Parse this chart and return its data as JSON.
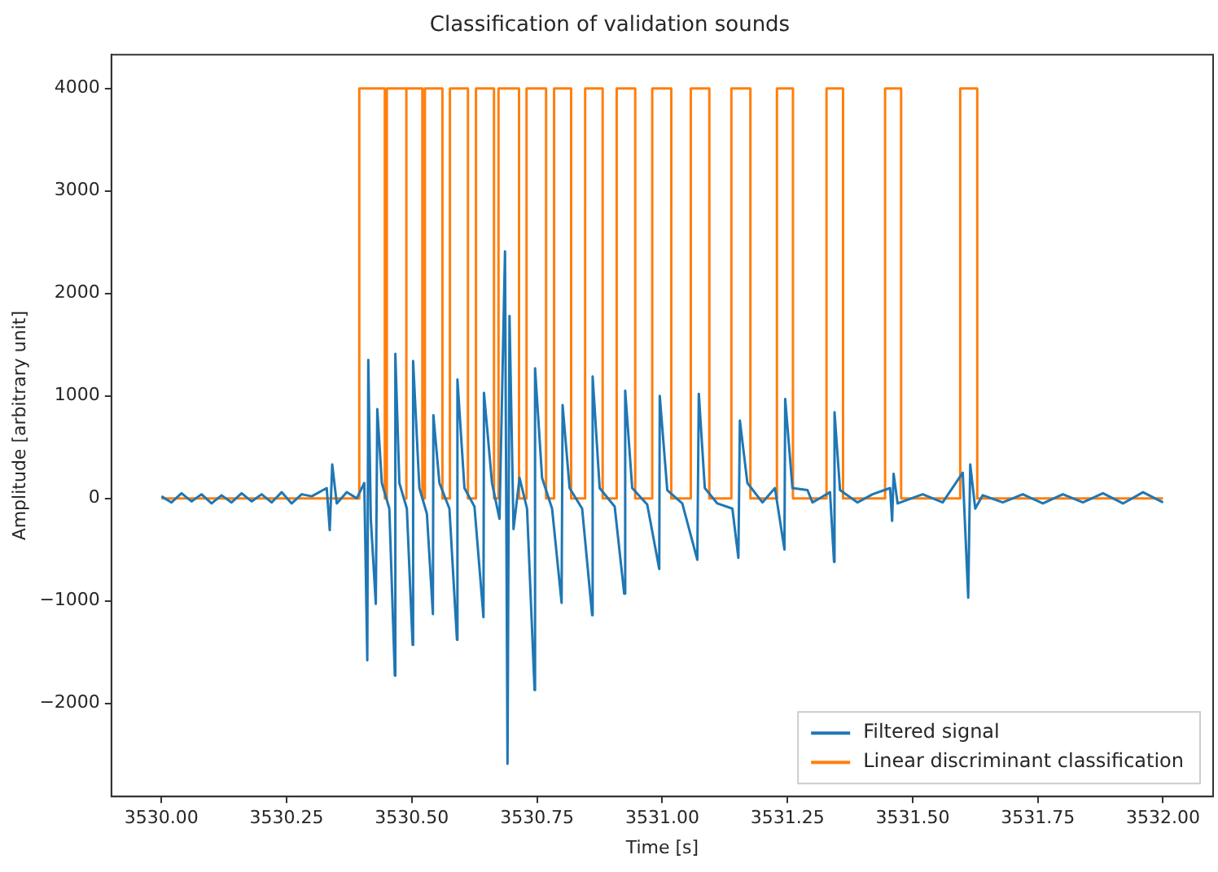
{
  "chart_data": {
    "type": "line",
    "title": "Classification of validation sounds",
    "xlabel": "Time [s]",
    "ylabel": "Amplitude [arbitrary unit]",
    "xlim": [
      3529.9,
      3532.1
    ],
    "ylim": [
      -2910,
      4330
    ],
    "xticks": [
      {
        "value": 3530,
        "label": "3530.00"
      },
      {
        "value": 3530.25,
        "label": "3530.25"
      },
      {
        "value": 3530.5,
        "label": "3530.50"
      },
      {
        "value": 3530.75,
        "label": "3530.75"
      },
      {
        "value": 3531,
        "label": "3531.00"
      },
      {
        "value": 3531.25,
        "label": "3531.25"
      },
      {
        "value": 3531.5,
        "label": "3531.50"
      },
      {
        "value": 3531.75,
        "label": "3531.75"
      },
      {
        "value": 3532,
        "label": "3532.00"
      }
    ],
    "yticks": [
      {
        "value": -2000,
        "label": "−2000"
      },
      {
        "value": -1000,
        "label": "−1000"
      },
      0,
      1000,
      2000,
      3000,
      4000
    ],
    "grid": false,
    "legend": "bottom right",
    "marker": "none",
    "line_style": "solid",
    "series": [
      {
        "name": "Filtered signal",
        "color": "#1f77b4",
        "type": "line",
        "x": [
          3530,
          3530.02,
          3530.04,
          3530.06,
          3530.08,
          3530.1,
          3530.12,
          3530.14,
          3530.16,
          3530.18,
          3530.2,
          3530.22,
          3530.24,
          3530.26,
          3530.28,
          3530.3,
          3530.33,
          3530.336,
          3530.341,
          3530.35,
          3530.37,
          3530.39,
          3530.405,
          3530.411,
          3530.413,
          3530.418,
          3530.428,
          3530.431,
          3530.44,
          3530.455,
          3530.466,
          3530.467,
          3530.475,
          3530.49,
          3530.5015,
          3530.5025,
          3530.515,
          3530.53,
          3530.542,
          3530.543,
          3530.555,
          3530.575,
          3530.59,
          3530.591,
          3530.605,
          3530.625,
          3530.643,
          3530.644,
          3530.66,
          3530.675,
          3530.686,
          3530.691,
          3530.695,
          3530.703,
          3530.715,
          3530.73,
          3530.745,
          3530.746,
          3530.76,
          3530.78,
          3530.799,
          3530.801,
          3530.815,
          3530.84,
          3530.86,
          3530.861,
          3530.875,
          3530.905,
          3530.924,
          3530.926,
          3530.94,
          3530.97,
          3530.994,
          3530.995,
          3531.01,
          3531.04,
          3531.07,
          3531.073,
          3531.085,
          3531.11,
          3531.14,
          3531.152,
          3531.155,
          3531.17,
          3531.2,
          3531.225,
          3531.244,
          3531.2455,
          3531.26,
          3531.29,
          3531.3,
          3531.335,
          3531.343,
          3531.344,
          3531.355,
          3531.39,
          3531.42,
          3531.455,
          3531.459,
          3531.462,
          3531.47,
          3531.52,
          3531.56,
          3531.6,
          3531.611,
          3531.615,
          3531.625,
          3531.64,
          3531.68,
          3531.72,
          3531.76,
          3531.8,
          3531.84,
          3531.88,
          3531.92,
          3531.96,
          3532
        ],
        "values": [
          20,
          -40,
          50,
          -30,
          40,
          -50,
          30,
          -40,
          50,
          -30,
          40,
          -40,
          60,
          -50,
          40,
          20,
          100,
          -310,
          330,
          -50,
          60,
          0,
          150,
          -1580,
          1350,
          -200,
          -1030,
          870,
          150,
          -100,
          -1730,
          1410,
          150,
          -100,
          -1430,
          1340,
          100,
          -150,
          -1130,
          810,
          150,
          -100,
          -1380,
          1160,
          100,
          -80,
          -1160,
          1030,
          150,
          -200,
          2410,
          -2590,
          1780,
          -300,
          200,
          -100,
          -1870,
          1270,
          200,
          -100,
          -1020,
          910,
          100,
          -100,
          -1140,
          1190,
          100,
          -80,
          -930,
          1050,
          100,
          -60,
          -690,
          1000,
          80,
          -50,
          -600,
          1020,
          100,
          -50,
          -100,
          -580,
          760,
          150,
          -40,
          100,
          -500,
          970,
          100,
          80,
          -40,
          60,
          -620,
          840,
          80,
          -40,
          40,
          100,
          -220,
          240,
          -50,
          40,
          -40,
          250,
          -970,
          330,
          -100,
          30,
          -40,
          40,
          -50,
          40,
          -40,
          50,
          -50,
          60,
          -40
        ]
      },
      {
        "name": "Linear discriminant classification",
        "color": "#ff7f0e",
        "type": "step",
        "x": [
          3530,
          3530.395,
          3530.446,
          3530.45,
          3530.489,
          3530.489,
          3530.521,
          3530.526,
          3530.561,
          3530.576,
          3530.612,
          3530.628,
          3530.664,
          3530.673,
          3530.714,
          3530.729,
          3530.768,
          3530.784,
          3530.818,
          3530.846,
          3530.881,
          3530.909,
          3530.946,
          3530.98,
          3531.018,
          3531.057,
          3531.094,
          3531.138,
          3531.176,
          3531.229,
          3531.261,
          3531.328,
          3531.361,
          3531.445,
          3531.477,
          3531.595,
          3531.629,
          3532
        ],
        "values": [
          0,
          4000,
          0,
          4000,
          0,
          4000,
          0,
          4000,
          0,
          4000,
          0,
          4000,
          0,
          4000,
          0,
          4000,
          0,
          4000,
          0,
          4000,
          0,
          4000,
          0,
          4000,
          0,
          4000,
          0,
          4000,
          0,
          4000,
          0,
          4000,
          0,
          4000,
          0,
          4000,
          0,
          0
        ]
      }
    ]
  }
}
